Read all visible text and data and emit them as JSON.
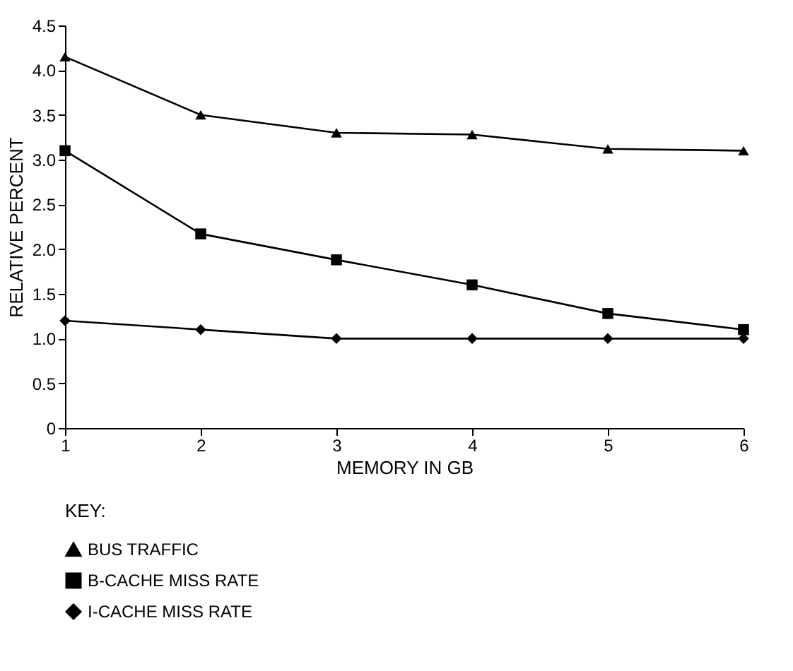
{
  "chart_data": {
    "type": "line",
    "xlabel": "MEMORY IN GB",
    "ylabel": "RELATIVE PERCENT",
    "legend_title": "KEY:",
    "x": [
      1,
      2,
      3,
      4,
      5,
      6
    ],
    "xlim": [
      1,
      6
    ],
    "xticks": [
      1,
      2,
      3,
      4,
      5,
      6
    ],
    "ylim": [
      0,
      4.5
    ],
    "yticks": [
      0,
      {
        "value": 0.5,
        "label": "0.5"
      },
      {
        "value": 1,
        "label": "1.0"
      },
      {
        "value": 1.5,
        "label": "1.5"
      },
      {
        "value": 2,
        "label": "2.0"
      },
      {
        "value": 2.5,
        "label": "2.5"
      },
      {
        "value": 3,
        "label": "3.0"
      },
      {
        "value": 3.5,
        "label": "3.5"
      },
      {
        "value": 4,
        "label": "4.0"
      },
      {
        "value": 4.5,
        "label": "4.5"
      }
    ],
    "grid": false,
    "legend": "bottom",
    "line_style": "solid",
    "series": [
      {
        "name": "BUS TRAFFIC",
        "color": "#000000",
        "marker": "triangle",
        "values": [
          4.15,
          3.5,
          3.3,
          3.28,
          3.12,
          3.1
        ]
      },
      {
        "name": "B-CACHE MISS RATE",
        "color": "#000000",
        "marker": "square",
        "values": [
          3.1,
          2.17,
          1.88,
          1.6,
          1.28,
          1.1
        ]
      },
      {
        "name": "I-CACHE MISS RATE",
        "color": "#000000",
        "marker": "diamond",
        "values": [
          1.2,
          1.1,
          1.0,
          1.0,
          1.0,
          1.0
        ]
      }
    ]
  }
}
